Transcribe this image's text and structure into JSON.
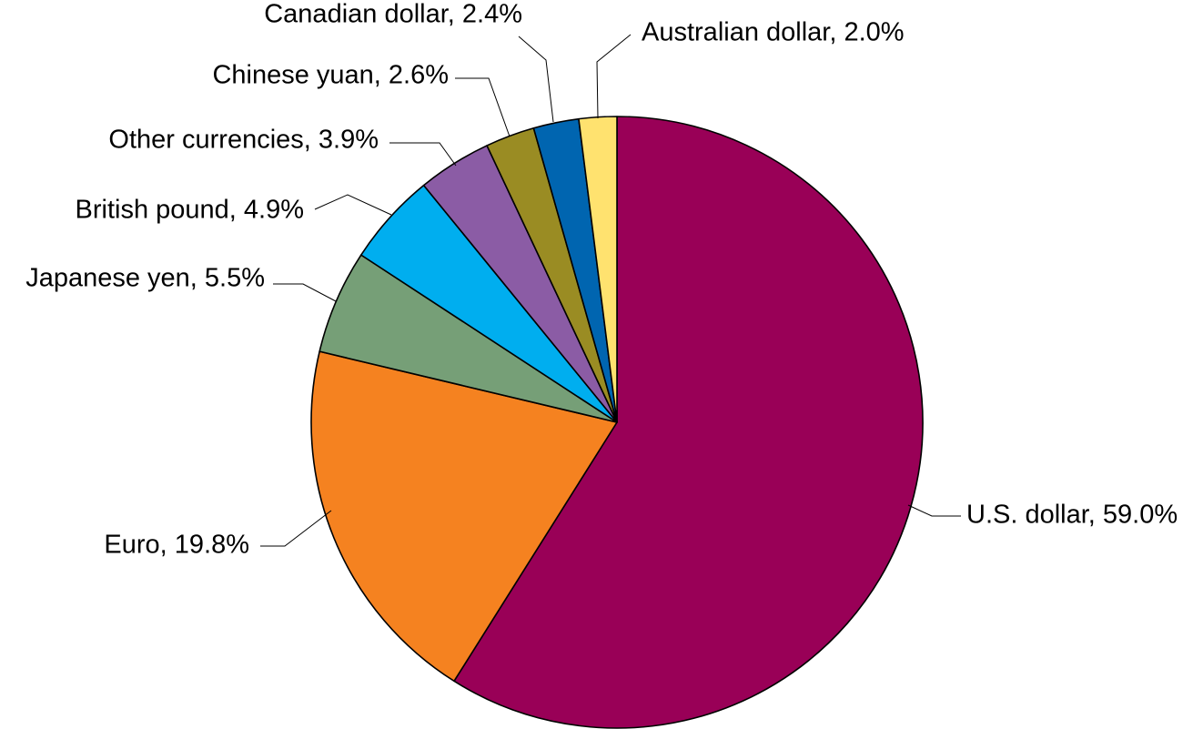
{
  "chart_data": {
    "type": "pie",
    "unit": "%",
    "start_angle_deg": 0,
    "direction": "clockwise",
    "slices": [
      {
        "label": "U.S. dollar, 59.0%",
        "name": "U.S. dollar",
        "value": 59.0,
        "color": "#990057"
      },
      {
        "label": "Euro, 19.8%",
        "name": "Euro",
        "value": 19.8,
        "color": "#F58220"
      },
      {
        "label": "Japanese yen, 5.5%",
        "name": "Japanese yen",
        "value": 5.5,
        "color": "#769F77"
      },
      {
        "label": "British pound, 4.9%",
        "name": "British pound",
        "value": 4.9,
        "color": "#00AEEF"
      },
      {
        "label": "Other currencies, 3.9%",
        "name": "Other currencies",
        "value": 3.9,
        "color": "#8B5CA5"
      },
      {
        "label": "Chinese yuan, 2.6%",
        "name": "Chinese yuan",
        "value": 2.6,
        "color": "#9A8C23"
      },
      {
        "label": "Canadian dollar, 2.4%",
        "name": "Canadian dollar",
        "value": 2.4,
        "color": "#0065B0"
      },
      {
        "label": "Australian dollar, 2.0%",
        "name": "Australian dollar",
        "value": 2.0,
        "color": "#FFE26F"
      }
    ]
  }
}
